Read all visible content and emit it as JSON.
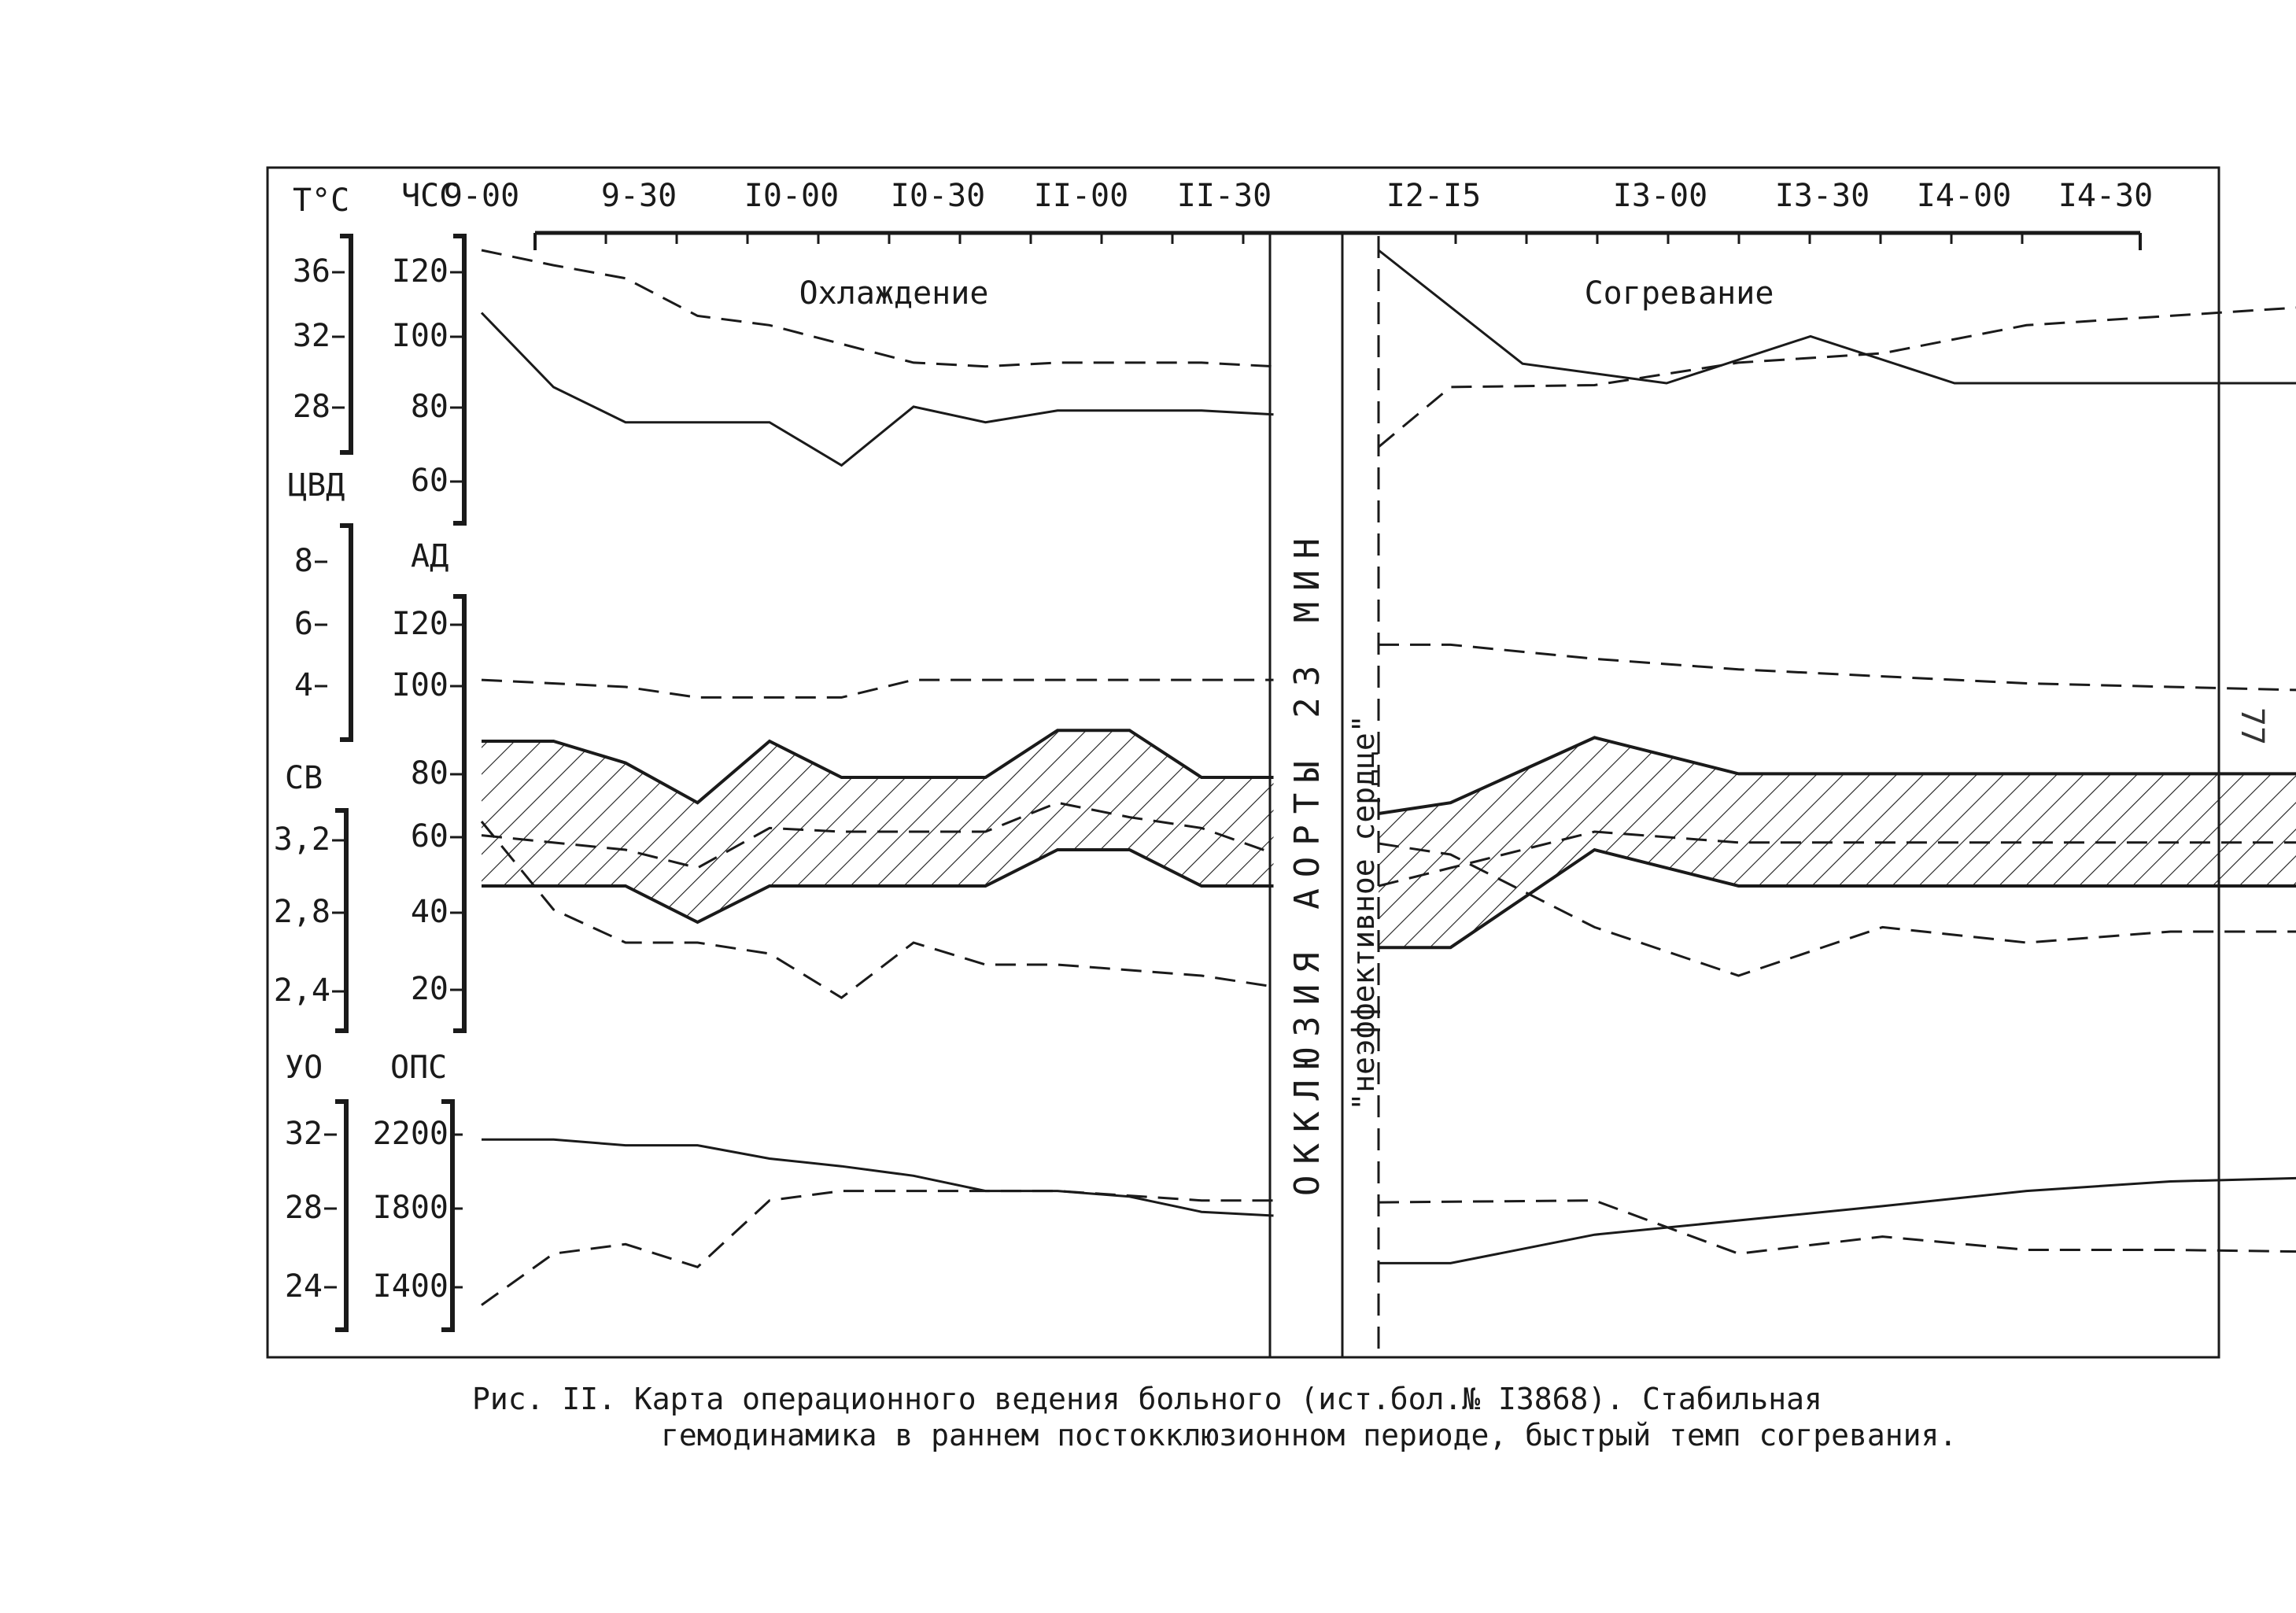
{
  "page_number": "77",
  "caption": {
    "line1": "Рис. II. Карта операционного ведения больного (ист.бол.№ I3868). Стабильная",
    "line2": "гемодинамика в раннем постокклюзионном периоде, быстрый темп согревания."
  },
  "chart_data": {
    "type": "line",
    "time_ticks": [
      "9-00",
      "9-30",
      "I0-00",
      "I0-30",
      "II-00",
      "II-30",
      "I2-I5",
      "I3-00",
      "I3-30",
      "I4-00",
      "I4-30"
    ],
    "annotations": {
      "cooling": "Охлаждение",
      "warming": "Согревание",
      "occlusion": "ОККЛЮЗИЯ АОРТЫ 23 МИН",
      "ineffective_heart": "\"неэффективное сердце\""
    },
    "axes": {
      "temp": {
        "label": "Т°С",
        "ticks": [
          "36",
          "32",
          "28"
        ],
        "range": [
          26,
          37
        ]
      },
      "hr": {
        "label": "ЧСС",
        "ticks": [
          "I20",
          "I00",
          "80",
          "60"
        ],
        "range": [
          56,
          126
        ]
      },
      "cvp": {
        "label": "ЦВД",
        "ticks": [
          "8",
          "6",
          "4"
        ],
        "range": [
          3,
          9
        ]
      },
      "bp": {
        "label": "АД",
        "ticks": [
          "I20",
          "I00",
          "80",
          "60",
          "40",
          "20"
        ],
        "range": [
          10,
          130
        ]
      },
      "ci": {
        "label": "СВ",
        "ticks": [
          "3,2",
          "2,8",
          "2,4"
        ],
        "range": [
          2.35,
          3.35
        ]
      },
      "sv": {
        "label": "УО",
        "ticks": [
          "32",
          "28",
          "24"
        ],
        "range": [
          22,
          34
        ]
      },
      "tpr": {
        "label": "ОПС",
        "ticks": [
          "2200",
          "I800",
          "I400"
        ],
        "range": [
          1200,
          2400
        ]
      }
    },
    "series": [
      {
        "id": "temp",
        "style": "dashed",
        "axis": "temp",
        "pre": [
          [
            0,
            37
          ],
          [
            0.5,
            36.2
          ],
          [
            1,
            35.5
          ],
          [
            1.5,
            33.5
          ],
          [
            2,
            33
          ],
          [
            2.5,
            32
          ],
          [
            3,
            31
          ],
          [
            3.5,
            30.8
          ],
          [
            4,
            31
          ],
          [
            4.5,
            31
          ],
          [
            5,
            31
          ],
          [
            5.5,
            30.8
          ]
        ],
        "post": [
          [
            6.25,
            26.5
          ],
          [
            6.5,
            29.7
          ],
          [
            7,
            29.8
          ],
          [
            7.5,
            31
          ],
          [
            8,
            31.5
          ],
          [
            8.5,
            33
          ],
          [
            9,
            33.5
          ],
          [
            9.5,
            34
          ],
          [
            10,
            34.5
          ],
          [
            10.5,
            35
          ],
          [
            11,
            35.5
          ]
        ]
      },
      {
        "id": "hr",
        "style": "solid",
        "axis": "hr",
        "pre": [
          [
            0,
            110
          ],
          [
            0.5,
            91
          ],
          [
            1,
            82
          ],
          [
            2,
            82
          ],
          [
            2.5,
            71
          ],
          [
            3,
            86
          ],
          [
            3.5,
            82
          ],
          [
            4,
            85
          ],
          [
            5,
            85
          ],
          [
            5.5,
            84
          ]
        ],
        "post": [
          [
            6.25,
            126
          ],
          [
            6.75,
            97
          ],
          [
            7.25,
            92
          ],
          [
            7.75,
            104
          ],
          [
            8.25,
            92
          ],
          [
            9,
            92
          ],
          [
            10,
            92
          ],
          [
            11,
            96
          ]
        ]
      },
      {
        "id": "cvp",
        "style": "dashed",
        "axis": "cvp",
        "pre": [
          [
            0,
            4.7
          ],
          [
            1,
            4.5
          ],
          [
            1.5,
            4.2
          ],
          [
            2,
            4.2
          ],
          [
            2.5,
            4.2
          ],
          [
            3,
            4.7
          ],
          [
            3.5,
            4.7
          ],
          [
            4,
            4.7
          ],
          [
            5,
            4.7
          ],
          [
            5.5,
            4.7
          ]
        ],
        "post": [
          [
            6.25,
            5.7
          ],
          [
            6.5,
            5.7
          ],
          [
            7,
            5.3
          ],
          [
            7.5,
            5
          ],
          [
            8,
            4.8
          ],
          [
            8.5,
            4.6
          ],
          [
            9,
            4.5
          ],
          [
            9.5,
            4.4
          ],
          [
            10,
            4.4
          ],
          [
            10.5,
            4.3
          ],
          [
            11,
            4.2
          ]
        ]
      },
      {
        "id": "bp_sys",
        "style": "solid",
        "axis": "bp",
        "pre": [
          [
            0,
            90
          ],
          [
            0.5,
            90
          ],
          [
            1,
            84
          ],
          [
            1.5,
            73
          ],
          [
            2,
            90
          ],
          [
            2.5,
            80
          ],
          [
            3,
            80
          ],
          [
            3.5,
            80
          ],
          [
            4,
            93
          ],
          [
            4.5,
            93
          ],
          [
            5,
            80
          ],
          [
            5.5,
            80
          ]
        ],
        "post": [
          [
            6.25,
            70
          ],
          [
            6.5,
            73
          ],
          [
            7,
            91
          ],
          [
            7.5,
            81
          ],
          [
            8,
            81
          ],
          [
            9,
            81
          ],
          [
            10,
            81
          ],
          [
            10.5,
            85
          ],
          [
            11,
            86
          ]
        ]
      },
      {
        "id": "bp_dia",
        "style": "solid",
        "axis": "bp",
        "pre": [
          [
            0,
            50
          ],
          [
            1,
            50
          ],
          [
            1.5,
            40
          ],
          [
            2,
            50
          ],
          [
            3,
            50
          ],
          [
            3.5,
            50
          ],
          [
            4,
            60
          ],
          [
            4.5,
            60
          ],
          [
            5,
            50
          ],
          [
            5.5,
            50
          ]
        ],
        "post": [
          [
            6.25,
            33
          ],
          [
            6.5,
            33
          ],
          [
            7,
            60
          ],
          [
            7.5,
            50
          ],
          [
            8,
            50
          ],
          [
            9,
            50
          ],
          [
            10,
            50
          ],
          [
            10.5,
            55
          ],
          [
            11,
            55
          ]
        ]
      },
      {
        "id": "bp_mean",
        "style": "dashed",
        "axis": "bp",
        "pre": [
          [
            0,
            64
          ],
          [
            1,
            60
          ],
          [
            1.5,
            55
          ],
          [
            2,
            66
          ],
          [
            2.5,
            65
          ],
          [
            3,
            65
          ],
          [
            3.5,
            65
          ],
          [
            4,
            73
          ],
          [
            4.5,
            69
          ],
          [
            5,
            66
          ],
          [
            5.5,
            59
          ]
        ],
        "post": [
          [
            6.25,
            50
          ],
          [
            6.5,
            55
          ],
          [
            7,
            65
          ],
          [
            7.5,
            62
          ],
          [
            8,
            62
          ],
          [
            9,
            62
          ],
          [
            10,
            62
          ],
          [
            10.5,
            65
          ],
          [
            11,
            70
          ]
        ]
      },
      {
        "id": "ci",
        "style": "dashed",
        "axis": "ci",
        "pre": [
          [
            0,
            3.3
          ],
          [
            0.5,
            2.9
          ],
          [
            1,
            2.75
          ],
          [
            1.5,
            2.75
          ],
          [
            2,
            2.7
          ],
          [
            2.5,
            2.5
          ],
          [
            3,
            2.75
          ],
          [
            3.5,
            2.65
          ],
          [
            4,
            2.65
          ],
          [
            5,
            2.6
          ],
          [
            5.5,
            2.55
          ]
        ],
        "post": [
          [
            6.25,
            3.2
          ],
          [
            6.5,
            3.15
          ],
          [
            7,
            2.82
          ],
          [
            7.5,
            2.6
          ],
          [
            8,
            2.82
          ],
          [
            8.5,
            2.75
          ],
          [
            9,
            2.8
          ],
          [
            9.5,
            2.8
          ],
          [
            10,
            2.9
          ],
          [
            10.5,
            2.95
          ],
          [
            11,
            3.05
          ]
        ]
      },
      {
        "id": "sv",
        "style": "solid",
        "axis": "sv",
        "pre": [
          [
            0,
            32
          ],
          [
            0.5,
            32
          ],
          [
            1,
            31.7
          ],
          [
            1.5,
            31.7
          ],
          [
            2,
            31
          ],
          [
            2.5,
            30.6
          ],
          [
            3,
            30.1
          ],
          [
            3.5,
            29.3
          ],
          [
            4,
            29.3
          ],
          [
            4.5,
            29
          ],
          [
            5,
            28.2
          ],
          [
            5.5,
            28
          ]
        ],
        "post": [
          [
            6.25,
            25.5
          ],
          [
            6.5,
            25.5
          ],
          [
            7,
            27
          ],
          [
            8,
            28.5
          ],
          [
            8.5,
            29.3
          ],
          [
            9,
            29.8
          ],
          [
            9.5,
            30
          ],
          [
            10,
            31
          ],
          [
            10.5,
            31.5
          ],
          [
            11,
            32.5
          ]
        ]
      },
      {
        "id": "tpr",
        "style": "dashed",
        "axis": "tpr",
        "pre": [
          [
            0,
            1330
          ],
          [
            0.5,
            1600
          ],
          [
            1,
            1650
          ],
          [
            1.5,
            1530
          ],
          [
            2,
            1880
          ],
          [
            2.5,
            1930
          ],
          [
            3,
            1930
          ],
          [
            3.5,
            1930
          ],
          [
            4,
            1930
          ],
          [
            5,
            1880
          ],
          [
            5.5,
            1880
          ]
        ],
        "post": [
          [
            6.25,
            1870
          ],
          [
            7,
            1880
          ],
          [
            7.5,
            1600
          ],
          [
            8,
            1690
          ],
          [
            8.5,
            1620
          ],
          [
            9,
            1620
          ],
          [
            9.5,
            1610
          ],
          [
            10,
            1590
          ],
          [
            10.5,
            1560
          ],
          [
            11,
            1550
          ]
        ]
      }
    ]
  }
}
